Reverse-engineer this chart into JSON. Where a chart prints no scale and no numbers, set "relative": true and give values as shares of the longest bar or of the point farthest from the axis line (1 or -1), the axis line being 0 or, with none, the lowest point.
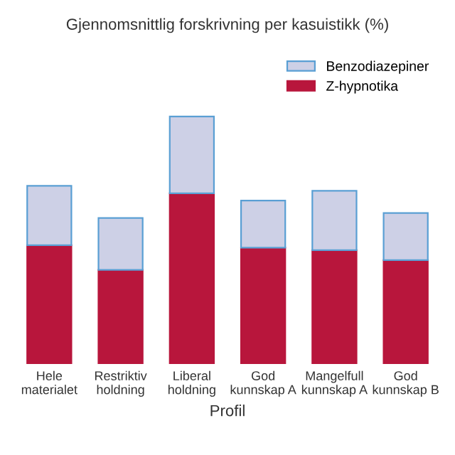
{
  "chart_data": {
    "type": "bar",
    "title": "Gjennomsnittlig forskrivning per kasuistikk (%)",
    "xlabel": "Profil",
    "relative": true,
    "stacked": true,
    "legend": "top right",
    "categories": [
      "Hele\nmaterialet",
      "Restriktiv\nholdning",
      "Liberal\nholdning",
      "God\nkunnskap A",
      "Mangelfull\nkunnskap A",
      "God\nkunnskap B"
    ],
    "series": [
      {
        "name": "Z-hypnotika",
        "color": "#b8163c",
        "values": [
          0.48,
          0.38,
          0.69,
          0.47,
          0.46,
          0.42
        ]
      },
      {
        "name": "Benzodiazepiner",
        "color": "#cdd0e6",
        "values": [
          0.24,
          0.21,
          0.31,
          0.19,
          0.24,
          0.19
        ]
      }
    ]
  }
}
